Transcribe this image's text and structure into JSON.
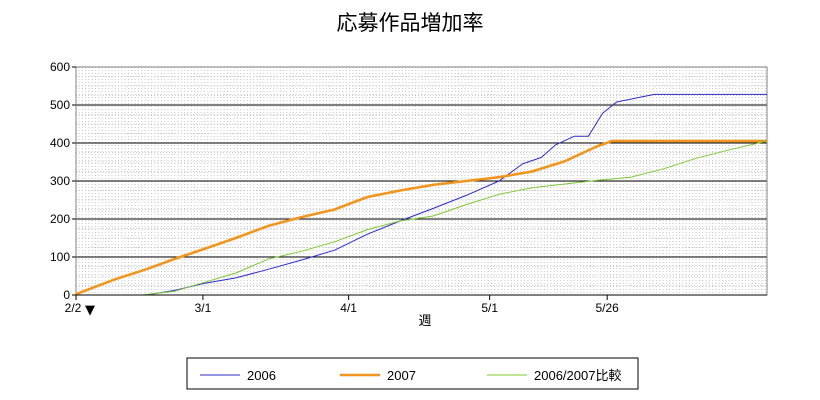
{
  "chart_data": {
    "type": "line",
    "title": "応募作品増加率",
    "xlabel": "週",
    "ylabel": "",
    "ylim": [
      0,
      600
    ],
    "yticks": [
      0,
      100,
      200,
      300,
      400,
      500,
      600
    ],
    "xlim": [
      "2/2",
      "6/29"
    ],
    "xticks": [
      "2/2",
      "3/1",
      "4/1",
      "5/1",
      "5/26"
    ],
    "grid": true,
    "legend_position": "bottom",
    "marker_label": "▼",
    "series": [
      {
        "name": "2006",
        "color": "#2b2bc8",
        "x": [
          "2/2",
          "2/10",
          "2/17",
          "2/23",
          "3/1",
          "3/8",
          "3/15",
          "3/22",
          "3/29",
          "4/5",
          "4/12",
          "4/19",
          "4/26",
          "5/3",
          "5/8",
          "5/12",
          "5/15",
          "5/19",
          "5/22",
          "5/25",
          "5/28",
          "6/5",
          "6/15",
          "6/29"
        ],
        "values": [
          0,
          0,
          0,
          12,
          30,
          45,
          68,
          92,
          118,
          160,
          195,
          228,
          262,
          300,
          345,
          362,
          395,
          418,
          418,
          478,
          508,
          528,
          528,
          528
        ]
      },
      {
        "name": "2007",
        "color": "#f0961e",
        "x": [
          "2/2",
          "2/10",
          "2/17",
          "2/23",
          "3/1",
          "3/8",
          "3/15",
          "3/22",
          "3/29",
          "4/5",
          "4/12",
          "4/19",
          "4/26",
          "5/3",
          "5/10",
          "5/17",
          "5/24",
          "5/27",
          "6/5",
          "6/15",
          "6/29"
        ],
        "values": [
          2,
          40,
          68,
          95,
          120,
          150,
          182,
          205,
          225,
          258,
          275,
          290,
          300,
          310,
          325,
          352,
          392,
          405,
          405,
          405,
          405
        ]
      },
      {
        "name": "2006/2007比較",
        "color": "#7cc832",
        "x": [
          "2/2",
          "2/16",
          "2/23",
          "3/1",
          "3/8",
          "3/15",
          "3/22",
          "3/29",
          "4/5",
          "4/12",
          "4/19",
          "4/26",
          "5/3",
          "5/10",
          "5/17",
          "5/24",
          "5/31",
          "6/7",
          "6/14",
          "6/21",
          "6/29"
        ],
        "values": [
          0,
          0,
          10,
          32,
          58,
          95,
          115,
          140,
          172,
          195,
          208,
          238,
          265,
          282,
          292,
          302,
          310,
          332,
          360,
          382,
          405
        ]
      }
    ]
  }
}
